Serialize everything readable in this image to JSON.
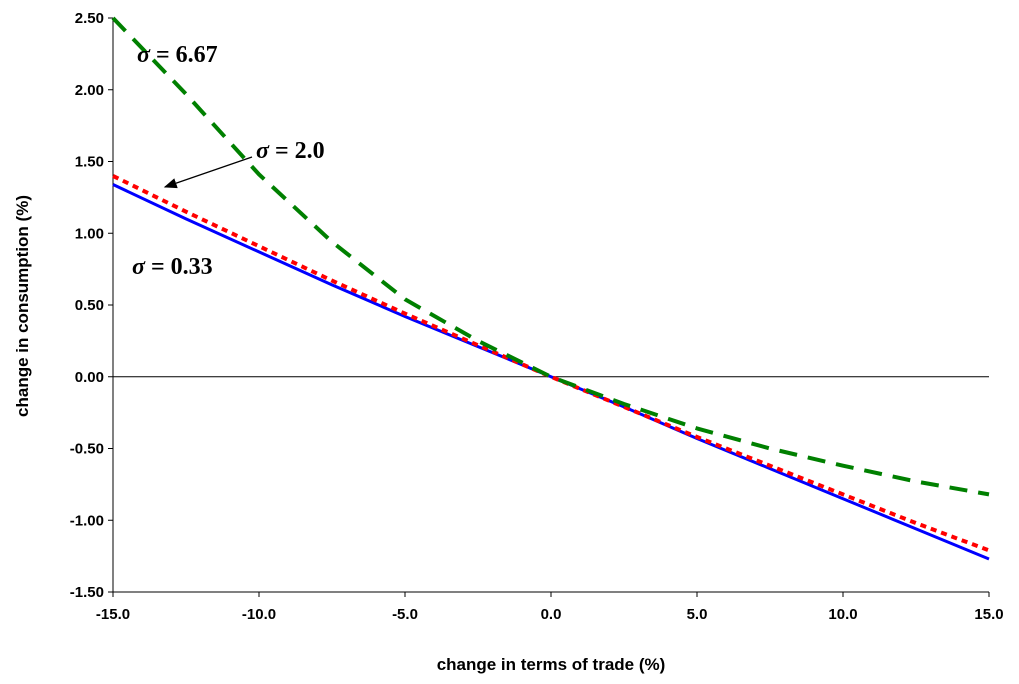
{
  "chart_data": {
    "type": "line",
    "title": "",
    "xlabel": "change in terms of trade (%)",
    "ylabel": "change in consumption (%)",
    "xlim": [
      -15,
      15
    ],
    "ylim": [
      -1.5,
      2.5
    ],
    "x_ticks": [
      "-15.0",
      "-10.0",
      "-5.0",
      "0.0",
      "5.0",
      "10.0",
      "15.0"
    ],
    "y_ticks": [
      "2.50",
      "2.00",
      "1.50",
      "1.00",
      "0.50",
      "0.00",
      "-0.50",
      "-1.00",
      "-1.50"
    ],
    "grid": false,
    "zero_line": true,
    "series": [
      {
        "annotation_symbol": "σ",
        "annotation_value": " = 0.33",
        "color": "#0000ff",
        "style": "solid",
        "x": [
          -15,
          -12.5,
          -10,
          -7.5,
          -5,
          -2.5,
          0,
          2.5,
          5,
          7.5,
          10,
          12.5,
          15
        ],
        "y": [
          1.34,
          1.1,
          0.87,
          0.64,
          0.42,
          0.21,
          0.0,
          -0.21,
          -0.43,
          -0.64,
          -0.85,
          -1.06,
          -1.27
        ]
      },
      {
        "annotation_symbol": "σ",
        "annotation_value": " = 2.0",
        "color": "#ff0000",
        "style": "dotted",
        "x": [
          -15,
          -12.5,
          -10,
          -7.5,
          -5,
          -2.5,
          0,
          2.5,
          5,
          7.5,
          10,
          12.5,
          15
        ],
        "y": [
          1.4,
          1.15,
          0.91,
          0.67,
          0.44,
          0.22,
          0.0,
          -0.21,
          -0.42,
          -0.62,
          -0.82,
          -1.02,
          -1.21
        ]
      },
      {
        "annotation_symbol": "σ",
        "annotation_value": " = 6.67",
        "color": "#008000",
        "style": "dashed",
        "x": [
          -15,
          -12.5,
          -10,
          -7.5,
          -5,
          -2.5,
          0,
          2.5,
          5,
          7.5,
          10,
          12.5,
          15
        ],
        "y": [
          2.5,
          1.97,
          1.41,
          0.94,
          0.54,
          0.25,
          0.0,
          -0.19,
          -0.36,
          -0.5,
          -0.62,
          -0.73,
          -0.82
        ]
      }
    ]
  }
}
